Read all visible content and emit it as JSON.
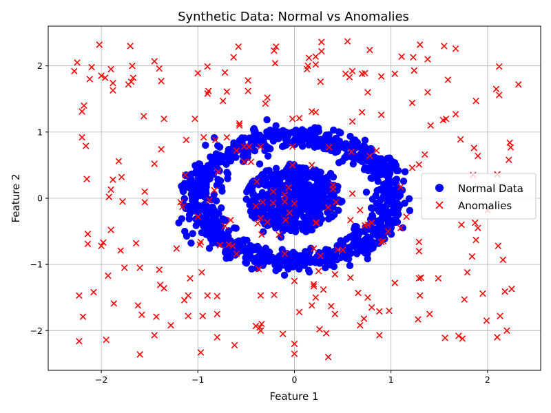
{
  "chart_data": {
    "type": "scatter",
    "title": "Synthetic Data: Normal vs Anomalies",
    "xlabel": "Feature 1",
    "ylabel": "Feature 2",
    "xlim": [
      -2.55,
      2.55
    ],
    "ylim": [
      -2.6,
      2.6
    ],
    "xticks": [
      -2,
      -1,
      0,
      1,
      2
    ],
    "yticks": [
      -2,
      -1,
      0,
      1,
      2
    ],
    "xtick_labels": [
      "−2",
      "−1",
      "0",
      "1",
      "2"
    ],
    "ytick_labels": [
      "−2",
      "−1",
      "0",
      "1",
      "2"
    ],
    "grid": true,
    "legend_position": "center-right",
    "series": [
      {
        "name": "Normal Data",
        "marker": "circle",
        "color": "#0000ff",
        "structure": [
          {
            "shape": "ring",
            "center": [
              0,
              0
            ],
            "radius_x": 1.0,
            "radius_y": 0.95,
            "spread": 0.09
          },
          {
            "shape": "disk",
            "center": [
              0,
              0
            ],
            "radius_x": 0.5,
            "radius_y": 0.5,
            "spread": 0.05
          }
        ]
      },
      {
        "name": "Anomalies",
        "marker": "x",
        "color": "#ff0000",
        "points": [
          [
            -2.28,
            1.92
          ],
          [
            -2.25,
            2.05
          ],
          [
            -2.2,
            1.31
          ],
          [
            -2.18,
            1.4
          ],
          [
            -2.2,
            0.92
          ],
          [
            -2.16,
            0.79
          ],
          [
            -2.15,
            0.29
          ],
          [
            -2.12,
            1.8
          ],
          [
            -2.1,
            1.98
          ],
          [
            -2.02,
            2.32
          ],
          [
            -2.0,
            1.85
          ],
          [
            -1.96,
            1.82
          ],
          [
            -1.9,
            1.95
          ],
          [
            -1.88,
            1.63
          ],
          [
            -1.88,
            1.74
          ],
          [
            -1.82,
            0.56
          ],
          [
            -1.88,
            0.28
          ],
          [
            -1.9,
            0.13
          ],
          [
            -1.92,
            0.02
          ],
          [
            -1.79,
            0.32
          ],
          [
            -1.78,
            -0.05
          ],
          [
            -1.7,
            2.3
          ],
          [
            -1.68,
            2.0
          ],
          [
            -1.67,
            1.82
          ],
          [
            -1.69,
            1.76
          ],
          [
            -1.72,
            1.72
          ],
          [
            -1.56,
            1.24
          ],
          [
            -1.55,
            -0.06
          ],
          [
            -1.55,
            0.1
          ],
          [
            -1.45,
            2.07
          ],
          [
            -1.4,
            1.96
          ],
          [
            -1.38,
            1.77
          ],
          [
            -1.35,
            1.2
          ],
          [
            -1.38,
            0.74
          ],
          [
            -1.45,
            0.52
          ],
          [
            -2.14,
            -0.54
          ],
          [
            -2.14,
            -0.69
          ],
          [
            -2.0,
            -0.72
          ],
          [
            -1.98,
            -0.67
          ],
          [
            -1.9,
            -0.48
          ],
          [
            -1.8,
            -0.79
          ],
          [
            -1.76,
            -1.05
          ],
          [
            -1.93,
            -1.17
          ],
          [
            -2.08,
            -1.42
          ],
          [
            -2.23,
            -1.47
          ],
          [
            -2.19,
            -1.79
          ],
          [
            -2.23,
            -2.16
          ],
          [
            -1.95,
            -2.14
          ],
          [
            -1.87,
            -1.59
          ],
          [
            -1.64,
            -0.68
          ],
          [
            -1.6,
            -1.05
          ],
          [
            -1.62,
            -1.62
          ],
          [
            -1.58,
            -1.76
          ],
          [
            -1.6,
            -2.36
          ],
          [
            -1.45,
            -2.07
          ],
          [
            -1.43,
            -1.79
          ],
          [
            -1.39,
            -1.31
          ],
          [
            -1.4,
            -1.08
          ],
          [
            -1.35,
            -1.36
          ],
          [
            -1.28,
            -1.92
          ],
          [
            -1.22,
            -0.76
          ],
          [
            -1.18,
            -0.06
          ],
          [
            -1.16,
            -0.13
          ],
          [
            -1.14,
            -1.54
          ],
          [
            -1.1,
            -1.47
          ],
          [
            -1.1,
            -1.78
          ],
          [
            -1.08,
            -1.21
          ],
          [
            -0.96,
            -1.12
          ],
          [
            -0.95,
            -1.78
          ],
          [
            -0.97,
            -2.33
          ],
          [
            -0.9,
            -1.47
          ],
          [
            -0.8,
            -1.48
          ],
          [
            -0.8,
            -1.75
          ],
          [
            -0.8,
            -2.1
          ],
          [
            -0.62,
            -2.22
          ],
          [
            -0.37,
            -1.07
          ],
          [
            -0.35,
            -1.47
          ],
          [
            -0.4,
            -1.93
          ],
          [
            -0.36,
            -1.95
          ],
          [
            -0.34,
            -1.9
          ],
          [
            -0.35,
            -2.0
          ],
          [
            -0.21,
            -1.46
          ],
          [
            -0.12,
            -2.05
          ],
          [
            0.0,
            -2.2
          ],
          [
            0.0,
            -2.35
          ],
          [
            0.05,
            -1.72
          ],
          [
            0.18,
            -1.62
          ],
          [
            0.2,
            -1.33
          ],
          [
            0.2,
            -1.3
          ],
          [
            0.22,
            -1.5
          ],
          [
            0.25,
            -1.1
          ],
          [
            0.26,
            -1.98
          ],
          [
            0.3,
            -1.38
          ],
          [
            0.33,
            -2.04
          ],
          [
            0.35,
            -2.4
          ],
          [
            0.38,
            -1.63
          ],
          [
            0.42,
            -1.75
          ],
          [
            0.42,
            -1.15
          ],
          [
            0.45,
            -0.78
          ],
          [
            0.58,
            -1.2
          ],
          [
            0.66,
            -1.43
          ],
          [
            0.68,
            -1.92
          ],
          [
            0.72,
            -1.82
          ],
          [
            0.76,
            -1.5
          ],
          [
            0.8,
            -1.65
          ],
          [
            0.88,
            -2.07
          ],
          [
            0.88,
            -1.71
          ],
          [
            0.98,
            -1.7
          ],
          [
            1.04,
            -1.28
          ],
          [
            1.29,
            -0.66
          ],
          [
            1.29,
            -0.8
          ],
          [
            1.29,
            -1.21
          ],
          [
            1.31,
            -1.2
          ],
          [
            1.3,
            -1.47
          ],
          [
            1.28,
            -1.83
          ],
          [
            1.4,
            -1.75
          ],
          [
            1.49,
            -1.21
          ],
          [
            1.56,
            -2.11
          ],
          [
            1.7,
            -2.08
          ],
          [
            1.74,
            -2.12
          ],
          [
            1.76,
            -1.53
          ],
          [
            1.79,
            -1.12
          ],
          [
            1.84,
            -0.88
          ],
          [
            1.88,
            -0.63
          ],
          [
            1.9,
            -0.45
          ],
          [
            1.87,
            -0.37
          ],
          [
            1.73,
            -0.4
          ],
          [
            1.95,
            -1.44
          ],
          [
            1.99,
            -1.85
          ],
          [
            2.1,
            -2.1
          ],
          [
            2.13,
            -1.78
          ],
          [
            2.18,
            -1.41
          ],
          [
            2.2,
            -2.0
          ],
          [
            2.25,
            -1.37
          ],
          [
            2.16,
            -0.93
          ],
          [
            2.11,
            -0.72
          ],
          [
            2.1,
            0.36
          ],
          [
            2.0,
            -0.18
          ],
          [
            2.22,
            0.58
          ],
          [
            2.24,
            0.77
          ],
          [
            2.23,
            0.84
          ],
          [
            1.9,
            0.64
          ],
          [
            1.86,
            0.76
          ],
          [
            1.85,
            0.35
          ],
          [
            1.72,
            0.89
          ],
          [
            1.67,
            1.27
          ],
          [
            1.57,
            1.2
          ],
          [
            1.54,
            1.18
          ],
          [
            1.59,
            1.79
          ],
          [
            1.67,
            2.26
          ],
          [
            1.55,
            2.3
          ],
          [
            1.41,
            1.1
          ],
          [
            1.38,
            1.6
          ],
          [
            1.38,
            2.1
          ],
          [
            1.35,
            0.66
          ],
          [
            1.29,
            0.51
          ],
          [
            1.22,
            0.46
          ],
          [
            1.22,
            1.44
          ],
          [
            1.24,
            1.93
          ],
          [
            1.23,
            2.13
          ],
          [
            1.11,
            2.14
          ],
          [
            1.04,
            1.88
          ],
          [
            1.3,
            2.32
          ],
          [
            2.12,
            1.99
          ],
          [
            2.09,
            1.65
          ],
          [
            2.12,
            1.56
          ],
          [
            2.32,
            1.72
          ],
          [
            1.88,
            1.47
          ],
          [
            0.9,
            1.26
          ],
          [
            0.9,
            1.84
          ],
          [
            0.76,
            1.6
          ],
          [
            0.78,
            2.24
          ],
          [
            0.7,
            1.3
          ],
          [
            0.6,
            1.16
          ],
          [
            0.57,
            1.83
          ],
          [
            0.6,
            1.92
          ],
          [
            0.55,
            2.37
          ],
          [
            0.53,
            1.88
          ],
          [
            0.73,
            1.89
          ],
          [
            0.27,
            1.76
          ],
          [
            0.28,
            2.22
          ],
          [
            0.28,
            2.36
          ],
          [
            0.22,
            2.02
          ],
          [
            0.22,
            2.14
          ],
          [
            0.14,
            2.0
          ],
          [
            0.13,
            1.95
          ],
          [
            0.15,
            2.12
          ],
          [
            0.18,
            1.31
          ],
          [
            0.22,
            1.3
          ],
          [
            0.05,
            1.21
          ],
          [
            -0.19,
            2.29
          ],
          [
            -0.21,
            2.23
          ],
          [
            -0.2,
            2.04
          ],
          [
            -0.28,
            1.52
          ],
          [
            -0.3,
            1.43
          ],
          [
            -0.48,
            1.78
          ],
          [
            -0.48,
            1.62
          ],
          [
            -0.58,
            2.29
          ],
          [
            -0.63,
            2.13
          ],
          [
            -0.57,
            1.1
          ],
          [
            -0.57,
            1.13
          ],
          [
            -0.52,
            0.78
          ],
          [
            -0.47,
            0.78
          ],
          [
            -0.45,
            0.55
          ],
          [
            -0.52,
            0.55
          ],
          [
            -0.6,
            0.72
          ],
          [
            -0.7,
            0.92
          ],
          [
            -0.7,
            1.61
          ],
          [
            -0.72,
            1.9
          ],
          [
            -0.74,
            1.47
          ],
          [
            -0.89,
            1.62
          ],
          [
            -0.9,
            1.58
          ],
          [
            -0.9,
            1.99
          ],
          [
            -1.0,
            1.89
          ],
          [
            -1.03,
            1.2
          ],
          [
            -1.12,
            0.88
          ],
          [
            -0.94,
            0.92
          ],
          [
            -0.82,
            0.88
          ],
          [
            -1.13,
            0.35
          ],
          [
            -0.83,
            0.12
          ],
          [
            -0.79,
            0.4
          ],
          [
            -0.88,
            -0.03
          ],
          [
            -1.0,
            -0.28
          ],
          [
            -0.97,
            -0.66
          ],
          [
            -0.98,
            -0.7
          ],
          [
            -0.68,
            -0.7
          ],
          [
            -0.72,
            -0.42
          ],
          [
            -0.6,
            -0.84
          ],
          [
            -0.77,
            -0.71
          ],
          [
            -0.66,
            -0.33
          ],
          [
            -0.64,
            -0.72
          ],
          [
            -0.39,
            0.25
          ],
          [
            -0.35,
            0.78
          ],
          [
            -0.4,
            -0.12
          ],
          [
            -0.38,
            -0.38
          ],
          [
            -0.34,
            -0.55
          ],
          [
            -0.33,
            -0.06
          ],
          [
            -0.35,
            -0.3
          ],
          [
            -0.28,
            -0.36
          ],
          [
            -0.22,
            -0.07
          ],
          [
            -0.22,
            0.1
          ],
          [
            -0.16,
            -0.55
          ],
          [
            -0.1,
            0.05
          ],
          [
            -0.09,
            -0.33
          ],
          [
            -0.06,
            0.16
          ],
          [
            -0.02,
            0.5
          ],
          [
            -0.02,
            0.78
          ],
          [
            -0.02,
            1.2
          ],
          [
            -0.05,
            -0.22
          ],
          [
            -0.1,
            -0.05
          ],
          [
            -0.1,
            -0.84
          ],
          [
            0.0,
            -0.08
          ],
          [
            0.0,
            -1.25
          ],
          [
            0.18,
            0.5
          ],
          [
            0.2,
            -0.76
          ],
          [
            0.22,
            -0.37
          ],
          [
            0.23,
            -0.37
          ],
          [
            0.27,
            -0.87
          ],
          [
            0.35,
            -0.14
          ],
          [
            0.36,
            0.77
          ],
          [
            0.4,
            0.14
          ],
          [
            0.4,
            0.2
          ],
          [
            0.43,
            -0.06
          ],
          [
            0.5,
            -0.78
          ],
          [
            0.58,
            -0.33
          ],
          [
            0.59,
            0.7
          ],
          [
            0.6,
            0.07
          ],
          [
            0.68,
            -0.18
          ],
          [
            0.73,
            -0.41
          ],
          [
            0.7,
            1.88
          ],
          [
            0.76,
            -0.4
          ],
          [
            0.78,
            0.64
          ],
          [
            0.8,
            -0.37
          ],
          [
            0.85,
            0.72
          ],
          [
            0.9,
            -0.66
          ],
          [
            0.92,
            -0.65
          ],
          [
            0.97,
            -0.5
          ],
          [
            1.1,
            -0.45
          ],
          [
            1.16,
            -0.28
          ],
          [
            1.1,
            0.17
          ]
        ]
      }
    ]
  }
}
